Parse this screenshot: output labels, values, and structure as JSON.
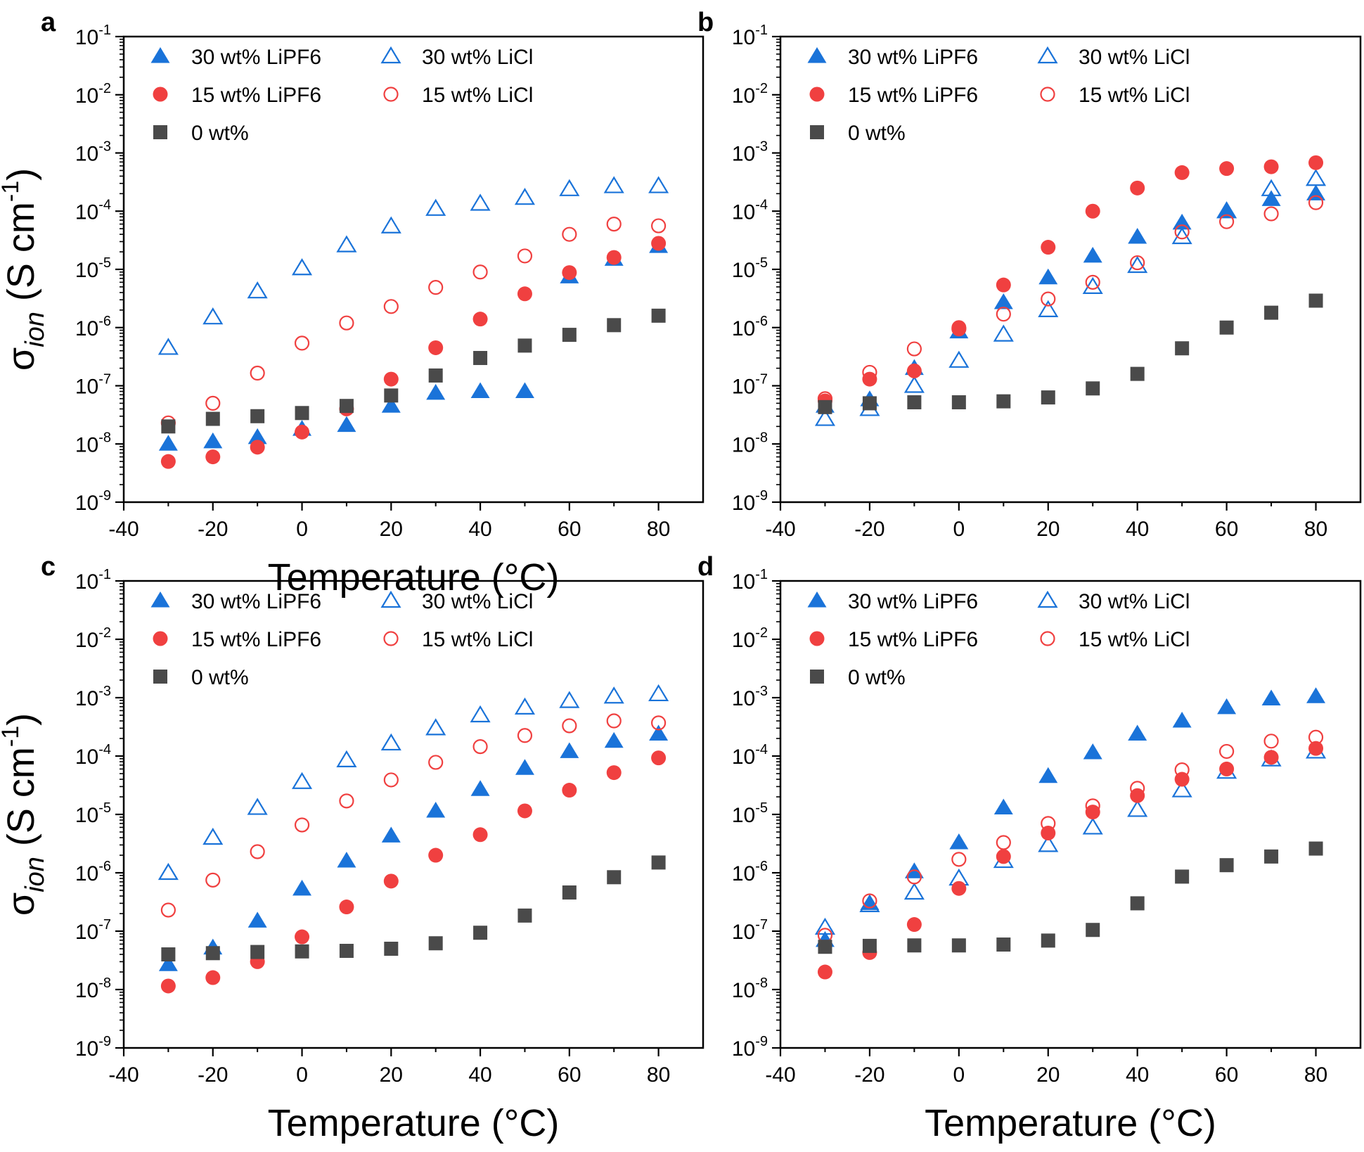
{
  "chart_data": [
    {
      "panel": "a",
      "type": "scatter",
      "xlabel": "Temperature (°C)",
      "ylabel": "σion (S cm-1)",
      "xlim": [
        -40,
        90
      ],
      "ylim": [
        1e-09,
        0.1
      ],
      "yscale": "log",
      "x_ticks": [
        -40,
        -20,
        0,
        20,
        40,
        60,
        80
      ],
      "y_tick_exponents": [
        -9,
        -8,
        -7,
        -6,
        -5,
        -4,
        -3,
        -2,
        -1
      ],
      "legend_position": "top-left",
      "series": [
        {
          "name": "30 wt% LiPF6",
          "marker": "triangle-filled",
          "color": "#1a73d9",
          "x": [
            -30,
            -20,
            -10,
            0,
            10,
            20,
            30,
            40,
            50,
            60,
            70,
            80
          ],
          "y": [
            1e-08,
            1.1e-08,
            1.3e-08,
            1.8e-08,
            2.1e-08,
            4.5e-08,
            7.5e-08,
            8e-08,
            8e-08,
            7.5e-06,
            1.5e-05,
            2.5e-05
          ]
        },
        {
          "name": "30 wt% LiCl",
          "marker": "triangle-open",
          "color": "#1a73d9",
          "x": [
            -30,
            -20,
            -10,
            0,
            10,
            20,
            30,
            40,
            50,
            60,
            70,
            80
          ],
          "y": [
            4.5e-07,
            1.5e-06,
            4.2e-06,
            1.05e-05,
            2.6e-05,
            5.5e-05,
            0.00011,
            0.000135,
            0.00017,
            0.00024,
            0.00027,
            0.00027
          ]
        },
        {
          "name": "15 wt% LiPF6",
          "marker": "circle-filled",
          "color": "#f04040",
          "x": [
            -30,
            -20,
            -10,
            0,
            10,
            20,
            30,
            40,
            50,
            60,
            70,
            80
          ],
          "y": [
            5e-09,
            6e-09,
            8.8e-09,
            1.6e-08,
            4e-08,
            1.3e-07,
            4.5e-07,
            1.4e-06,
            3.8e-06,
            8.8e-06,
            1.6e-05,
            2.8e-05
          ]
        },
        {
          "name": "15 wt% LiCl",
          "marker": "circle-open",
          "color": "#f04040",
          "x": [
            -30,
            -20,
            -10,
            0,
            10,
            20,
            30,
            40,
            50,
            60,
            70,
            80
          ],
          "y": [
            2.3e-08,
            5e-08,
            1.65e-07,
            5.4e-07,
            1.2e-06,
            2.3e-06,
            4.9e-06,
            9e-06,
            1.7e-05,
            4e-05,
            6e-05,
            5.6e-05
          ]
        },
        {
          "name": "0 wt%",
          "marker": "square-filled",
          "color": "#4a4a4a",
          "x": [
            -30,
            -20,
            -10,
            0,
            10,
            20,
            30,
            40,
            50,
            60,
            70,
            80
          ],
          "y": [
            2e-08,
            2.7e-08,
            3e-08,
            3.4e-08,
            4.5e-08,
            6.8e-08,
            1.5e-07,
            3e-07,
            4.9e-07,
            7.5e-07,
            1.1e-06,
            1.6e-06
          ]
        }
      ]
    },
    {
      "panel": "b",
      "type": "scatter",
      "xlabel": "",
      "ylabel": "",
      "xlim": [
        -40,
        90
      ],
      "ylim": [
        1e-09,
        0.1
      ],
      "yscale": "log",
      "x_ticks": [
        -40,
        -20,
        0,
        20,
        40,
        60,
        80
      ],
      "y_tick_exponents": [
        -9,
        -8,
        -7,
        -6,
        -5,
        -4,
        -3,
        -2,
        -1
      ],
      "legend_position": "top-left",
      "series": [
        {
          "name": "30 wt% LiPF6",
          "marker": "triangle-filled",
          "color": "#1a73d9",
          "x": [
            -30,
            -20,
            -10,
            0,
            10,
            20,
            30,
            40,
            50,
            60,
            70,
            80
          ],
          "y": [
            4.5e-08,
            5.8e-08,
            2e-07,
            8.5e-07,
            2.7e-06,
            7.2e-06,
            1.7e-05,
            3.6e-05,
            6.3e-05,
            0.0001,
            0.00016,
            0.0002
          ]
        },
        {
          "name": "30 wt% LiCl",
          "marker": "triangle-open",
          "color": "#1a73d9",
          "x": [
            -30,
            -20,
            -10,
            0,
            10,
            20,
            30,
            40,
            50,
            60,
            70,
            80
          ],
          "y": [
            2.7e-08,
            4e-08,
            1e-07,
            2.7e-07,
            7.6e-07,
            2e-06,
            5e-06,
            1.15e-05,
            3.6e-05,
            0.0001,
            0.00024,
            0.00036
          ]
        },
        {
          "name": "15 wt% LiPF6",
          "marker": "circle-filled",
          "color": "#f04040",
          "x": [
            -30,
            -20,
            -10,
            0,
            10,
            20,
            30,
            40,
            50,
            60,
            70,
            80
          ],
          "y": [
            5.5e-08,
            1.3e-07,
            1.8e-07,
            1e-06,
            5.4e-06,
            2.4e-05,
            0.0001,
            0.00025,
            0.00046,
            0.00054,
            0.00058,
            0.00068
          ]
        },
        {
          "name": "15 wt% LiCl",
          "marker": "circle-open",
          "color": "#f04040",
          "x": [
            -30,
            -20,
            -10,
            0,
            10,
            20,
            30,
            40,
            50,
            60,
            70,
            80
          ],
          "y": [
            6e-08,
            1.7e-07,
            4.3e-07,
            9.5e-07,
            1.7e-06,
            3.1e-06,
            6e-06,
            1.3e-05,
            4.4e-05,
            6.6e-05,
            9e-05,
            0.00014
          ]
        },
        {
          "name": "0 wt%",
          "marker": "square-filled",
          "color": "#4a4a4a",
          "x": [
            -30,
            -20,
            -10,
            0,
            10,
            20,
            30,
            40,
            50,
            60,
            70,
            80
          ],
          "y": [
            4.3e-08,
            5e-08,
            5.2e-08,
            5.2e-08,
            5.4e-08,
            6.3e-08,
            9e-08,
            1.6e-07,
            4.4e-07,
            1e-06,
            1.8e-06,
            2.9e-06
          ]
        }
      ]
    },
    {
      "panel": "c",
      "type": "scatter",
      "xlabel": "Temperature (°C)",
      "ylabel": "σion (S cm-1)",
      "xlim": [
        -40,
        90
      ],
      "ylim": [
        1e-09,
        0.1
      ],
      "yscale": "log",
      "x_ticks": [
        -40,
        -20,
        0,
        20,
        40,
        60,
        80
      ],
      "y_tick_exponents": [
        -9,
        -8,
        -7,
        -6,
        -5,
        -4,
        -3,
        -2,
        -1
      ],
      "legend_position": "top-left",
      "series": [
        {
          "name": "30 wt% LiPF6",
          "marker": "triangle-filled",
          "color": "#1a73d9",
          "x": [
            -30,
            -20,
            -10,
            0,
            10,
            20,
            30,
            40,
            50,
            60,
            70,
            80
          ],
          "y": [
            2.7e-08,
            5.2e-08,
            1.5e-07,
            5.3e-07,
            1.6e-06,
            4.3e-06,
            1.15e-05,
            2.7e-05,
            6.2e-05,
            0.00012,
            0.00018,
            0.00024
          ]
        },
        {
          "name": "30 wt% LiCl",
          "marker": "triangle-open",
          "color": "#1a73d9",
          "x": [
            -30,
            -20,
            -10,
            0,
            10,
            20,
            30,
            40,
            50,
            60,
            70,
            80
          ],
          "y": [
            1e-06,
            4e-06,
            1.3e-05,
            3.6e-05,
            8.5e-05,
            0.000165,
            0.0003,
            0.0005,
            0.00068,
            0.00088,
            0.00105,
            0.00115
          ]
        },
        {
          "name": "15 wt% LiPF6",
          "marker": "circle-filled",
          "color": "#f04040",
          "x": [
            -30,
            -20,
            -10,
            0,
            10,
            20,
            30,
            40,
            50,
            60,
            70,
            80
          ],
          "y": [
            1.15e-08,
            1.6e-08,
            3e-08,
            8e-08,
            2.6e-07,
            7.2e-07,
            2e-06,
            4.5e-06,
            1.15e-05,
            2.6e-05,
            5.2e-05,
            9.3e-05
          ]
        },
        {
          "name": "15 wt% LiCl",
          "marker": "circle-open",
          "color": "#f04040",
          "x": [
            -30,
            -20,
            -10,
            0,
            10,
            20,
            30,
            40,
            50,
            60,
            70,
            80
          ],
          "y": [
            2.3e-07,
            7.5e-07,
            2.3e-06,
            6.6e-06,
            1.7e-05,
            3.9e-05,
            7.8e-05,
            0.000145,
            0.000225,
            0.00033,
            0.0004,
            0.00037
          ]
        },
        {
          "name": "0 wt%",
          "marker": "square-filled",
          "color": "#4a4a4a",
          "x": [
            -30,
            -20,
            -10,
            0,
            10,
            20,
            30,
            40,
            50,
            60,
            70,
            80
          ],
          "y": [
            4e-08,
            4.2e-08,
            4.4e-08,
            4.5e-08,
            4.6e-08,
            5e-08,
            6.2e-08,
            9.4e-08,
            1.85e-07,
            4.6e-07,
            8.4e-07,
            1.5e-06
          ]
        }
      ]
    },
    {
      "panel": "d",
      "type": "scatter",
      "xlabel": "Temperature (°C)",
      "ylabel": "",
      "xlim": [
        -40,
        90
      ],
      "ylim": [
        1e-09,
        0.1
      ],
      "yscale": "log",
      "x_ticks": [
        -40,
        -20,
        0,
        20,
        40,
        60,
        80
      ],
      "y_tick_exponents": [
        -9,
        -8,
        -7,
        -6,
        -5,
        -4,
        -3,
        -2,
        -1
      ],
      "legend_position": "top-left",
      "series": [
        {
          "name": "30 wt% LiPF6",
          "marker": "triangle-filled",
          "color": "#1a73d9",
          "x": [
            -30,
            -20,
            -10,
            0,
            10,
            20,
            30,
            40,
            50,
            60,
            70,
            80
          ],
          "y": [
            7e-08,
            3e-07,
            1.05e-06,
            3.3e-06,
            1.3e-05,
            4.5e-05,
            0.000115,
            0.00024,
            0.0004,
            0.00068,
            0.00096,
            0.00105
          ]
        },
        {
          "name": "30 wt% LiCl",
          "marker": "triangle-open",
          "color": "#1a73d9",
          "x": [
            -30,
            -20,
            -10,
            0,
            10,
            20,
            30,
            40,
            50,
            60,
            70,
            80
          ],
          "y": [
            1.15e-07,
            2.8e-07,
            4.6e-07,
            8e-07,
            1.6e-06,
            3e-06,
            6e-06,
            1.2e-05,
            2.6e-05,
            5.4e-05,
            8.8e-05,
            0.00012
          ]
        },
        {
          "name": "15 wt% LiPF6",
          "marker": "circle-filled",
          "color": "#f04040",
          "x": [
            -30,
            -20,
            -10,
            0,
            10,
            20,
            30,
            40,
            50,
            60,
            70,
            80
          ],
          "y": [
            2e-08,
            4.3e-08,
            1.3e-07,
            5.4e-07,
            1.9e-06,
            4.8e-06,
            1.1e-05,
            2.1e-05,
            4e-05,
            6e-05,
            9.5e-05,
            0.000135
          ]
        },
        {
          "name": "15 wt% LiCl",
          "marker": "circle-open",
          "color": "#f04040",
          "x": [
            -30,
            -20,
            -10,
            0,
            10,
            20,
            30,
            40,
            50,
            60,
            70,
            80
          ],
          "y": [
            8.5e-08,
            3.3e-07,
            8.5e-07,
            1.7e-06,
            3.3e-06,
            7e-06,
            1.4e-05,
            2.8e-05,
            5.8e-05,
            0.00012,
            0.00018,
            0.00021
          ]
        },
        {
          "name": "0 wt%",
          "marker": "square-filled",
          "color": "#4a4a4a",
          "x": [
            -30,
            -20,
            -10,
            0,
            10,
            20,
            30,
            40,
            50,
            60,
            70,
            80
          ],
          "y": [
            5.4e-08,
            5.6e-08,
            5.7e-08,
            5.7e-08,
            5.9e-08,
            6.9e-08,
            1.05e-07,
            3e-07,
            8.6e-07,
            1.35e-06,
            1.9e-06,
            2.6e-06
          ]
        }
      ]
    }
  ]
}
